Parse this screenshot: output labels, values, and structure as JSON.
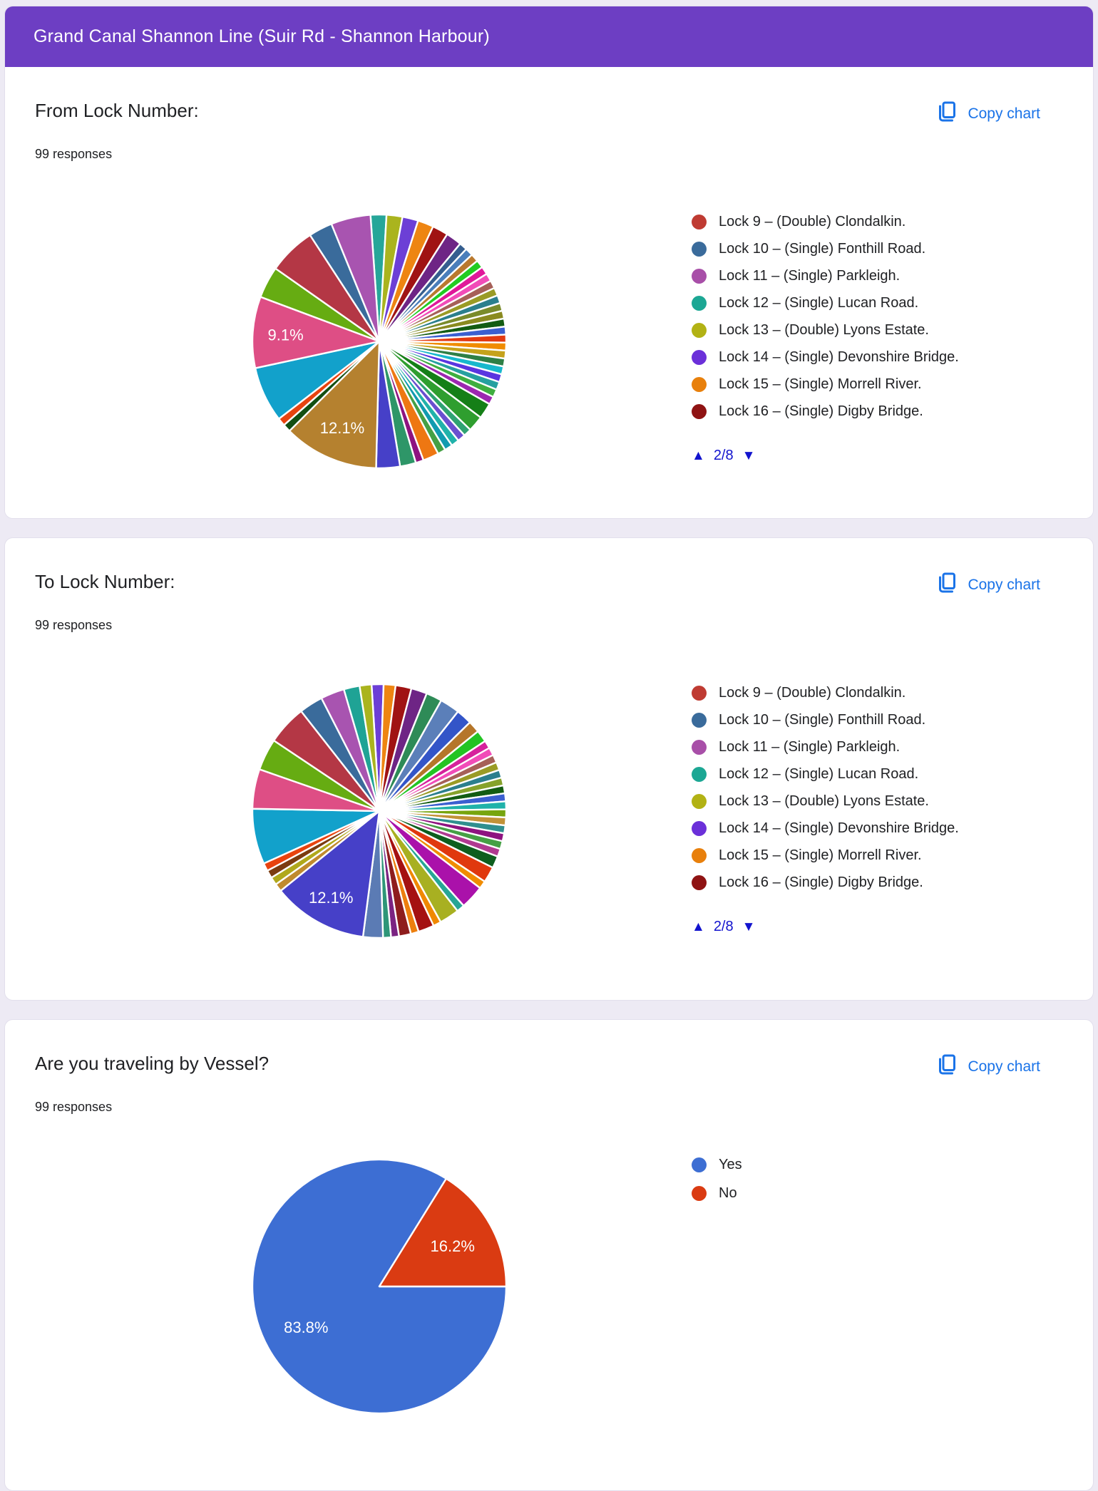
{
  "page": {
    "background": "#EDEAF4"
  },
  "header": {
    "title": "Grand Canal Shannon Line (Suir Rd - Shannon Harbour)",
    "background": "#6D3EC3"
  },
  "copy_chart_label": "Copy chart",
  "accent_blue": "#1A73E8",
  "pagination_blue": "#1213CE",
  "cards": [
    {
      "title": "From Lock Number:",
      "responses": "99 responses",
      "pagination": "2/8",
      "legend": [
        {
          "color": "#BF3B32",
          "label": "Lock 9 – (Double) Clondalkin."
        },
        {
          "color": "#3A6B9B",
          "label": "Lock 10 – (Single) Fonthill Road."
        },
        {
          "color": "#A84FA8",
          "label": "Lock 11 – (Single) Parkleigh."
        },
        {
          "color": "#1CA794",
          "label": "Lock 12 – (Single) Lucan Road."
        },
        {
          "color": "#B2B214",
          "label": "Lock 13 – (Double) Lyons Estate."
        },
        {
          "color": "#6B30D9",
          "label": "Lock 14 – (Single) Devonshire Bridge."
        },
        {
          "color": "#E8800C",
          "label": "Lock 15 – (Single) Morrell River."
        },
        {
          "color": "#8F1313",
          "label": "Lock 16 – (Single) Digby Bridge."
        }
      ]
    },
    {
      "title": "To Lock Number:",
      "responses": "99 responses",
      "pagination": "2/8",
      "legend": [
        {
          "color": "#BF3B32",
          "label": "Lock 9 – (Double) Clondalkin."
        },
        {
          "color": "#3A6B9B",
          "label": "Lock 10 – (Single) Fonthill Road."
        },
        {
          "color": "#A84FA8",
          "label": "Lock 11 – (Single) Parkleigh."
        },
        {
          "color": "#1CA794",
          "label": "Lock 12 – (Single) Lucan Road."
        },
        {
          "color": "#B2B214",
          "label": "Lock 13 – (Double) Lyons Estate."
        },
        {
          "color": "#6B30D9",
          "label": "Lock 14 – (Single) Devonshire Bridge."
        },
        {
          "color": "#E8800C",
          "label": "Lock 15 – (Single) Morrell River."
        },
        {
          "color": "#8F1313",
          "label": "Lock 16 – (Single) Digby Bridge."
        }
      ]
    },
    {
      "title": "Are you traveling by Vessel?",
      "responses": "99 responses",
      "pagination": null,
      "legend": [
        {
          "color": "#3D6ED3",
          "label": "Yes"
        },
        {
          "color": "#DA3B12",
          "label": "No"
        }
      ]
    }
  ],
  "chart_data": [
    {
      "type": "pie",
      "title": "From Lock Number:",
      "total_responses": 99,
      "legend_position": "right",
      "legend_page": "2/8",
      "labeled_slices": {
        "9.1%": 9,
        "12.1%": 12
      },
      "note": "Only 9.1% and 12.1% are labeled on the chart; remaining slice values are estimated from arc angles (99 responses total).",
      "start_angle": 356,
      "label_r": 0.74,
      "slices": [
        {
          "color": "#26A699",
          "value": 2
        },
        {
          "color": "#AAB41E",
          "value": 2
        },
        {
          "color": "#6C3FD6",
          "value": 2
        },
        {
          "color": "#EE8512",
          "value": 2
        },
        {
          "color": "#A01313",
          "value": 2
        },
        {
          "color": "#6E2585",
          "value": 2
        },
        {
          "color": "#355E8F",
          "value": 1
        },
        {
          "color": "#4A7EBB",
          "value": 1
        },
        {
          "color": "#B9792F",
          "value": 1
        },
        {
          "color": "#22CC22",
          "value": 1
        },
        {
          "color": "#E0189A",
          "value": 1
        },
        {
          "color": "#F14CB8",
          "value": 1
        },
        {
          "color": "#A66058",
          "value": 1
        },
        {
          "color": "#9A9B25",
          "value": 1
        },
        {
          "color": "#2B7F8D",
          "value": 1
        },
        {
          "color": "#7A8B2B",
          "value": 1
        },
        {
          "color": "#8A8A20",
          "value": 1
        },
        {
          "color": "#135C13",
          "value": 1
        },
        {
          "color": "#3B5FD0",
          "value": 1
        },
        {
          "color": "#E33B12",
          "value": 1
        },
        {
          "color": "#F08C00",
          "value": 1
        },
        {
          "color": "#C5A21B",
          "value": 1
        },
        {
          "color": "#2E7F46",
          "value": 1
        },
        {
          "color": "#18B8CC",
          "value": 1
        },
        {
          "color": "#5A35E0",
          "value": 1
        },
        {
          "color": "#26A0A0",
          "value": 1
        },
        {
          "color": "#3FAE3F",
          "value": 1
        },
        {
          "color": "#9C27B0",
          "value": 1
        },
        {
          "color": "#157F17",
          "value": 2
        },
        {
          "color": "#2F9E2F",
          "value": 2
        },
        {
          "color": "#2FA372",
          "value": 1
        },
        {
          "color": "#6A4FD0",
          "value": 1
        },
        {
          "color": "#20B2AA",
          "value": 1
        },
        {
          "color": "#119BB0",
          "value": 1
        },
        {
          "color": "#45A045",
          "value": 1
        },
        {
          "color": "#EE7712",
          "value": 2
        },
        {
          "color": "#8E1380",
          "value": 1
        },
        {
          "color": "#2E9668",
          "value": 2
        },
        {
          "color": "#4640C8",
          "value": 3
        },
        {
          "color": "#B5812F",
          "value": 12,
          "label": "12.1%"
        },
        {
          "color": "#124F12",
          "value": 1
        },
        {
          "color": "#E8430F",
          "value": 1
        },
        {
          "color": "#12A1CB",
          "value": 7
        },
        {
          "color": "#DE4E85",
          "value": 9,
          "label": "9.1%"
        },
        {
          "color": "#66AC12",
          "value": 4
        },
        {
          "color": "#B43745",
          "value": 6
        },
        {
          "color": "#3A6B9B",
          "value": 3
        },
        {
          "color": "#A854B0",
          "value": 5
        }
      ]
    },
    {
      "type": "pie",
      "title": "To Lock Number:",
      "total_responses": 99,
      "legend_position": "right",
      "legend_page": "2/8",
      "labeled_slices": {
        "12.1%": 12
      },
      "note": "Only 12.1% is labeled on the chart; remaining slice values are estimated from arc angles (99 responses total).",
      "start_angle": 356.5,
      "label_r": 0.78,
      "slices": [
        {
          "color": "#6C3FD6",
          "value": 1.5
        },
        {
          "color": "#EE8512",
          "value": 1.5
        },
        {
          "color": "#A01313",
          "value": 2
        },
        {
          "color": "#6E2585",
          "value": 2
        },
        {
          "color": "#2E8B57",
          "value": 2
        },
        {
          "color": "#5B7FB9",
          "value": 2.5
        },
        {
          "color": "#3355C8",
          "value": 2
        },
        {
          "color": "#B5762A",
          "value": 1.5
        },
        {
          "color": "#23C423",
          "value": 1.5
        },
        {
          "color": "#D6219C",
          "value": 1
        },
        {
          "color": "#F14CB8",
          "value": 1
        },
        {
          "color": "#A66058",
          "value": 1
        },
        {
          "color": "#9A9B25",
          "value": 1
        },
        {
          "color": "#2B7F8D",
          "value": 1
        },
        {
          "color": "#86A22B",
          "value": 1
        },
        {
          "color": "#135C13",
          "value": 1
        },
        {
          "color": "#3B5FD0",
          "value": 1
        },
        {
          "color": "#20B2AA",
          "value": 1
        },
        {
          "color": "#77A50E",
          "value": 1
        },
        {
          "color": "#C29238",
          "value": 1
        },
        {
          "color": "#2F8F8F",
          "value": 1
        },
        {
          "color": "#8E1380",
          "value": 1
        },
        {
          "color": "#45A045",
          "value": 1
        },
        {
          "color": "#B03A90",
          "value": 1
        },
        {
          "color": "#0E5E1E",
          "value": 1.5
        },
        {
          "color": "#E0380E",
          "value": 2
        },
        {
          "color": "#F08C00",
          "value": 1
        },
        {
          "color": "#AA11AA",
          "value": 3
        },
        {
          "color": "#27A695",
          "value": 1
        },
        {
          "color": "#A8B021",
          "value": 2.5
        },
        {
          "color": "#F08800",
          "value": 1
        },
        {
          "color": "#A51111",
          "value": 2
        },
        {
          "color": "#ED7F0E",
          "value": 1
        },
        {
          "color": "#8E1D1D",
          "value": 1.5
        },
        {
          "color": "#7B2382",
          "value": 1
        },
        {
          "color": "#2E9678",
          "value": 1
        },
        {
          "color": "#5B7BB4",
          "value": 2.5
        },
        {
          "color": "#4640C8",
          "value": 12,
          "label": "12.1%"
        },
        {
          "color": "#C08A2E",
          "value": 1
        },
        {
          "color": "#B0A81B",
          "value": 1
        },
        {
          "color": "#7B3B10",
          "value": 1
        },
        {
          "color": "#E8430F",
          "value": 1
        },
        {
          "color": "#12A1CB",
          "value": 7
        },
        {
          "color": "#DE4E85",
          "value": 5
        },
        {
          "color": "#66AC12",
          "value": 4
        },
        {
          "color": "#B43745",
          "value": 5
        },
        {
          "color": "#3A6B9B",
          "value": 3
        },
        {
          "color": "#A854B0",
          "value": 3
        },
        {
          "color": "#1FA395",
          "value": 2
        },
        {
          "color": "#AAB41E",
          "value": 1.5
        }
      ]
    },
    {
      "type": "pie",
      "title": "Are you traveling by Vessel?",
      "total_responses": 99,
      "legend_position": "right",
      "categories": [
        "Yes",
        "No"
      ],
      "values": [
        83,
        16
      ],
      "percentages": [
        "83.8%",
        "16.2%"
      ],
      "start_angle": 90,
      "label_r": 0.66,
      "slices": [
        {
          "color": "#3D6ED3",
          "value": 83,
          "label": "83.8%",
          "name": "Yes"
        },
        {
          "color": "#DA3B12",
          "value": 16,
          "label": "16.2%",
          "name": "No"
        }
      ]
    }
  ]
}
